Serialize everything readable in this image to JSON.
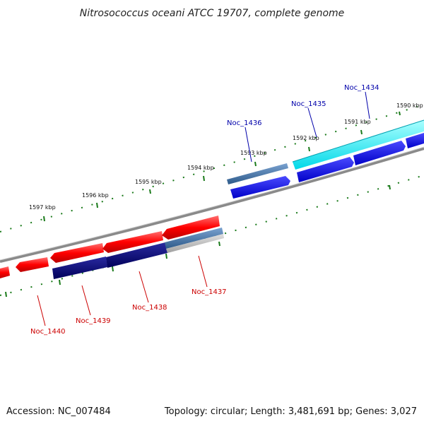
{
  "title": "Nitrosococcus oceani ATCC 19707, complete genome",
  "accession": "Accession: NC_007484",
  "summary": "Topology: circular; Length: 3,481,691 bp; Genes: 3,027",
  "ticks": [
    "1590 kbp",
    "1591 kbp",
    "1592 kbp",
    "1593 kbp",
    "1594 kbp",
    "1595 kbp",
    "1596 kbp",
    "1597 kbp"
  ],
  "genes_forward": [
    "Noc_1434",
    "Noc_1435",
    "Noc_1436"
  ],
  "genes_reverse": [
    "Noc_1437",
    "Noc_1438",
    "Noc_1439",
    "Noc_1440"
  ],
  "colors": {
    "forward_label": "#0000aa",
    "reverse_label": "#cc0000",
    "tick_green": "#1a7a1a",
    "backbone": "#888888"
  }
}
